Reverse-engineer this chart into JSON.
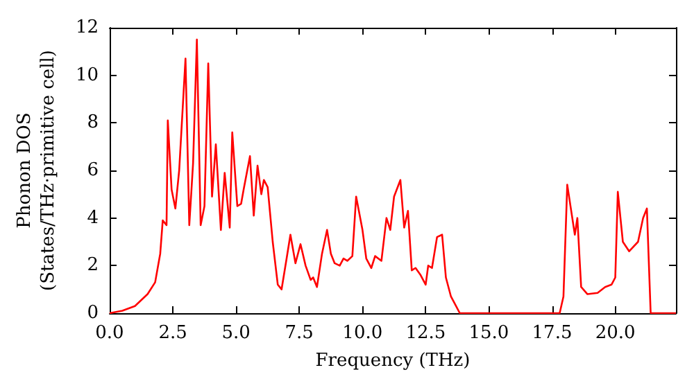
{
  "chart_data": {
    "type": "line",
    "xlabel": "Frequency (THz)",
    "ylabel": "Phonon DOS\n(States/THz·primitive cell)",
    "x": [
      0,
      0.5,
      1,
      1.5,
      1.8,
      2.0,
      2.1,
      2.25,
      2.3,
      2.45,
      2.6,
      2.75,
      3.0,
      3.15,
      3.3,
      3.45,
      3.6,
      3.75,
      3.9,
      4.05,
      4.2,
      4.4,
      4.55,
      4.75,
      4.85,
      5.05,
      5.2,
      5.3,
      5.55,
      5.7,
      5.85,
      6.0,
      6.1,
      6.25,
      6.45,
      6.65,
      6.8,
      7.0,
      7.15,
      7.35,
      7.55,
      7.75,
      7.95,
      8.05,
      8.2,
      8.4,
      8.6,
      8.75,
      8.9,
      9.1,
      9.25,
      9.4,
      9.6,
      9.75,
      10.0,
      10.15,
      10.35,
      10.5,
      10.75,
      10.95,
      11.1,
      11.25,
      11.5,
      11.65,
      11.8,
      11.95,
      12.1,
      12.3,
      12.5,
      12.6,
      12.75,
      12.95,
      13.15,
      13.3,
      13.5,
      13.7,
      13.85,
      17.8,
      17.95,
      18.1,
      18.4,
      18.5,
      18.65,
      18.9,
      19.3,
      19.6,
      19.85,
      20.0,
      20.1,
      20.3,
      20.55,
      20.9,
      21.1,
      21.25,
      21.4,
      22.4
    ],
    "series": [
      {
        "color": "#ff0000",
        "values": [
          0,
          0.1,
          0.3,
          0.8,
          1.3,
          2.5,
          3.9,
          3.7,
          8.1,
          5.2,
          4.4,
          6.0,
          10.7,
          3.7,
          6.3,
          11.5,
          3.7,
          4.5,
          10.5,
          4.9,
          7.1,
          3.5,
          5.9,
          3.6,
          7.6,
          4.5,
          4.6,
          5.2,
          6.6,
          4.1,
          6.2,
          5.0,
          5.6,
          5.3,
          3.0,
          1.2,
          1.0,
          2.3,
          3.3,
          2.1,
          2.9,
          2.0,
          1.4,
          1.5,
          1.1,
          2.5,
          3.5,
          2.5,
          2.1,
          2.0,
          2.3,
          2.2,
          2.4,
          4.9,
          3.5,
          2.3,
          1.9,
          2.4,
          2.2,
          4.0,
          3.5,
          4.9,
          5.6,
          3.6,
          4.3,
          1.8,
          1.9,
          1.6,
          1.2,
          2.0,
          1.9,
          3.2,
          3.3,
          1.5,
          0.7,
          0.3,
          0,
          0,
          0.7,
          5.4,
          3.3,
          4.0,
          1.1,
          0.8,
          0.85,
          1.1,
          1.2,
          1.5,
          5.1,
          3.0,
          2.6,
          3.0,
          4.0,
          4.4,
          0,
          0
        ]
      }
    ],
    "xlim": [
      0,
      22.4
    ],
    "xticks": [
      {
        "value": 0,
        "label": "0.0"
      },
      {
        "value": 2.5,
        "label": "2.5"
      },
      {
        "value": 5,
        "label": "5.0"
      },
      {
        "value": 7.5,
        "label": "7.5"
      },
      {
        "value": 10,
        "label": "10.0"
      },
      {
        "value": 12.5,
        "label": "12.5"
      },
      {
        "value": 15,
        "label": "15.0"
      },
      {
        "value": 17.5,
        "label": "17.5"
      },
      {
        "value": 20,
        "label": "20.0"
      }
    ],
    "ylim": [
      0,
      12
    ],
    "yticks": [
      0,
      2,
      4,
      6,
      8,
      10,
      12
    ],
    "grid": false,
    "marker": "none",
    "line_style": "solid"
  }
}
